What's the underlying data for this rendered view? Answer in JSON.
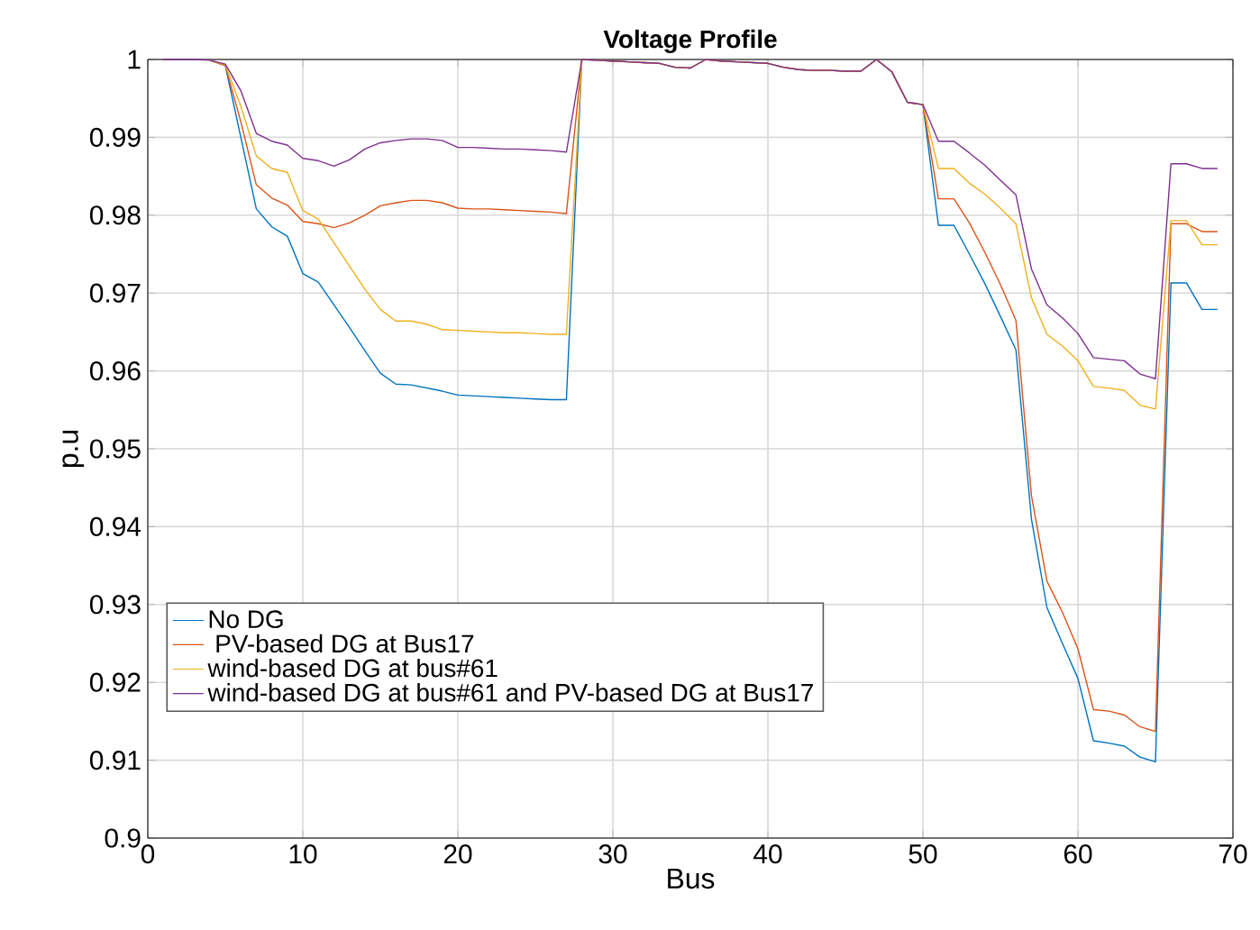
{
  "chart_data": {
    "type": "line",
    "title": "Voltage Profile",
    "xlabel": "Bus",
    "ylabel": "p.u",
    "x": [
      1,
      2,
      3,
      4,
      5,
      6,
      7,
      8,
      9,
      10,
      11,
      12,
      13,
      14,
      15,
      16,
      17,
      18,
      19,
      20,
      21,
      22,
      23,
      24,
      25,
      26,
      27,
      28,
      29,
      30,
      31,
      32,
      33,
      34,
      35,
      36,
      37,
      38,
      39,
      40,
      41,
      42,
      43,
      44,
      45,
      46,
      47,
      48,
      49,
      50,
      51,
      52,
      53,
      54,
      55,
      56,
      57,
      58,
      59,
      60,
      61,
      62,
      63,
      64,
      65,
      66,
      67,
      68,
      69
    ],
    "series": [
      {
        "name": "No DG",
        "color": "#0072bd",
        "values": [
          null,
          null,
          null,
          0.9999,
          0.9992,
          0.99,
          0.9808,
          0.9785,
          0.9773,
          0.9725,
          0.9714,
          0.9685,
          0.9656,
          0.9626,
          0.9597,
          0.9583,
          0.9582,
          0.9578,
          0.9574,
          0.9569,
          0.9568,
          0.9567,
          0.9566,
          0.9565,
          0.9564,
          0.9563,
          0.9563,
          1.0,
          0.9999,
          0.9998,
          0.9997,
          0.9996,
          0.9995,
          0.999,
          0.9989,
          1.0,
          0.9998,
          0.9997,
          0.9996,
          0.9995,
          0.999,
          0.9987,
          0.9986,
          0.9986,
          0.9985,
          0.9985,
          1.0,
          0.9984,
          0.9945,
          0.9942,
          0.9787,
          0.9787,
          0.975,
          0.9712,
          0.967,
          0.9627,
          0.941,
          0.9296,
          0.925,
          0.9205,
          0.9125,
          0.9122,
          0.9118,
          0.9104,
          0.9098,
          0.9713,
          0.9713,
          0.9679,
          0.9679
        ]
      },
      {
        "name": " PV-based DG at Bus17",
        "color": "#d95319",
        "values": [
          null,
          null,
          null,
          0.9999,
          0.9992,
          0.992,
          0.9839,
          0.9822,
          0.9813,
          0.9792,
          0.9789,
          0.9784,
          0.979,
          0.98,
          0.9812,
          0.9816,
          0.9819,
          0.9819,
          0.9816,
          0.9809,
          0.9808,
          0.9808,
          0.9807,
          0.9806,
          0.9805,
          0.9804,
          0.9802,
          1.0,
          0.9999,
          0.9998,
          0.9997,
          0.9996,
          0.9995,
          0.999,
          0.9989,
          1.0,
          0.9998,
          0.9997,
          0.9996,
          0.9995,
          0.999,
          0.9987,
          0.9986,
          0.9986,
          0.9985,
          0.9985,
          1.0,
          0.9984,
          0.9945,
          0.9942,
          0.9821,
          0.9821,
          0.979,
          0.9752,
          0.9711,
          0.9665,
          0.944,
          0.933,
          0.929,
          0.9243,
          0.9165,
          0.9163,
          0.9158,
          0.9143,
          0.9137,
          0.9789,
          0.9789,
          0.9779,
          0.9779
        ]
      },
      {
        "name": "wind-based DG at bus#61",
        "color": "#edb120",
        "values": [
          null,
          null,
          null,
          0.9999,
          0.9993,
          0.994,
          0.9876,
          0.986,
          0.9855,
          0.9806,
          0.9795,
          0.9765,
          0.9735,
          0.9705,
          0.9679,
          0.9664,
          0.9664,
          0.966,
          0.9653,
          0.9652,
          0.9651,
          0.965,
          0.9649,
          0.9649,
          0.9648,
          0.9647,
          0.9647,
          1.0,
          0.9999,
          0.9998,
          0.9997,
          0.9996,
          0.9995,
          0.999,
          0.9989,
          1.0,
          0.9998,
          0.9997,
          0.9996,
          0.9995,
          0.999,
          0.9987,
          0.9986,
          0.9986,
          0.9985,
          0.9985,
          1.0,
          0.9984,
          0.9945,
          0.9942,
          0.986,
          0.986,
          0.9841,
          0.9827,
          0.9809,
          0.9789,
          0.9694,
          0.9647,
          0.9632,
          0.9613,
          0.958,
          0.9578,
          0.9575,
          0.9556,
          0.9551,
          0.9793,
          0.9793,
          0.9762,
          0.9762
        ]
      },
      {
        "name": "wind-based DG at bus#61 and PV-based DG at Bus17",
        "color": "#7e2f8e",
        "values": [
          1.0,
          1.0,
          1.0,
          0.9999,
          0.9994,
          0.996,
          0.9905,
          0.9895,
          0.989,
          0.9873,
          0.987,
          0.9863,
          0.9871,
          0.9885,
          0.9893,
          0.9896,
          0.9898,
          0.9898,
          0.9896,
          0.9887,
          0.9887,
          0.9886,
          0.9885,
          0.9885,
          0.9884,
          0.9883,
          0.9881,
          1.0,
          0.9999,
          0.9998,
          0.9997,
          0.9996,
          0.9995,
          0.999,
          0.9989,
          1.0,
          0.9998,
          0.9997,
          0.9996,
          0.9995,
          0.999,
          0.9987,
          0.9986,
          0.9986,
          0.9985,
          0.9985,
          1.0,
          0.9984,
          0.9945,
          0.9942,
          0.9895,
          0.9895,
          0.988,
          0.9864,
          0.9845,
          0.9826,
          0.9731,
          0.9685,
          0.9668,
          0.9648,
          0.9617,
          0.9615,
          0.9613,
          0.9596,
          0.959,
          0.9866,
          0.9866,
          0.986,
          0.986
        ]
      }
    ],
    "xlim": [
      0,
      70
    ],
    "xticks": [
      0,
      10,
      20,
      30,
      40,
      50,
      60,
      70
    ],
    "ylim": [
      0.9,
      1
    ],
    "yticks": [
      0.9,
      0.91,
      0.92,
      0.93,
      0.94,
      0.95,
      0.96,
      0.97,
      0.98,
      0.99,
      1
    ],
    "grid": true,
    "legend": "bottom left",
    "line_style": "solid"
  }
}
